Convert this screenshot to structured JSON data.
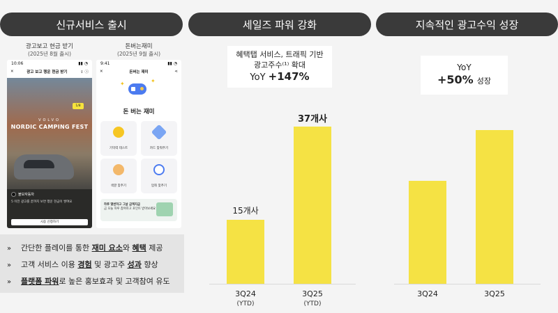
{
  "headers": {
    "left": "신규서비스 출시",
    "middle": "세일즈 파워 강화",
    "right": "지속적인 광고수익 성장"
  },
  "phones": [
    {
      "caption": "광고보고 현금 받기",
      "sub": "(2025년 8월 출시)",
      "status_time": "10:06",
      "nav_title": "광고 보고 행운 현금 받기",
      "badge": "1/8",
      "ad_brand": "VOLVO",
      "ad_title": "NORDIC CAMPING FEST",
      "footer_brand": "볼보자동차",
      "footer_text": "5 이전 광고를 끝까지 보면 행운 현금이 쌓여요",
      "cta": "시승 신청하기"
    },
    {
      "caption": "돈버는재미",
      "sub": "(2025년 9월 출시)",
      "status_time": "9:41",
      "nav_title": "돈버는 재미",
      "game_title": "돈 버는 재미",
      "tiles": [
        "기억력 테스트",
        "카드 맞춰주기",
        "색깔 맞추기",
        "멈춰 맞추기"
      ],
      "promo_title": "하루 몇번하고 그날 금액지급",
      "promo_text": "금 오늘 하루 참여하고 포인트 받아보세요"
    }
  ],
  "bullets": [
    {
      "pre": "간단한 플레이를 통한 ",
      "b1": "재미 요소",
      "mid": "와 ",
      "b2": "혜택",
      "post": " 제공"
    },
    {
      "pre": "고객 서비스 이용 ",
      "b1": "경험",
      "mid": " 및 광고주 ",
      "b2": "성과",
      "post": " 향상"
    },
    {
      "pre": "",
      "b1": "플랫폼 파워",
      "mid": "로 높은 홍보효과 및 고객참여 유도",
      "b2": "",
      "post": ""
    }
  ],
  "callouts": {
    "middle": {
      "line1": "혜택탭 서비스, 트래픽 기반",
      "line2": "광고주수⁽¹⁾ 확대",
      "yoy": "YoY",
      "value": "+147%"
    },
    "right": {
      "yoy": "YoY",
      "value": "+50%",
      "suffix": "성장"
    }
  },
  "chart_data": [
    {
      "type": "bar",
      "title": "세일즈 파워 강화",
      "categories": [
        "3Q24\n(YTD)",
        "3Q25\n(YTD)"
      ],
      "values": [
        15,
        37
      ],
      "value_labels": [
        "15개사",
        "37개사"
      ],
      "sublabels": [
        "(YTD)",
        "(YTD)"
      ],
      "labels": [
        "3Q24",
        "3Q25"
      ],
      "ylim": [
        0,
        40
      ],
      "color": "#f5e244"
    },
    {
      "type": "bar",
      "title": "지속적인 광고수익 성장",
      "categories": [
        "3Q24",
        "3Q25"
      ],
      "labels": [
        "3Q24",
        "3Q25"
      ],
      "values": [
        100,
        150
      ],
      "ylim": [
        0,
        160
      ],
      "color": "#f5e244"
    }
  ]
}
